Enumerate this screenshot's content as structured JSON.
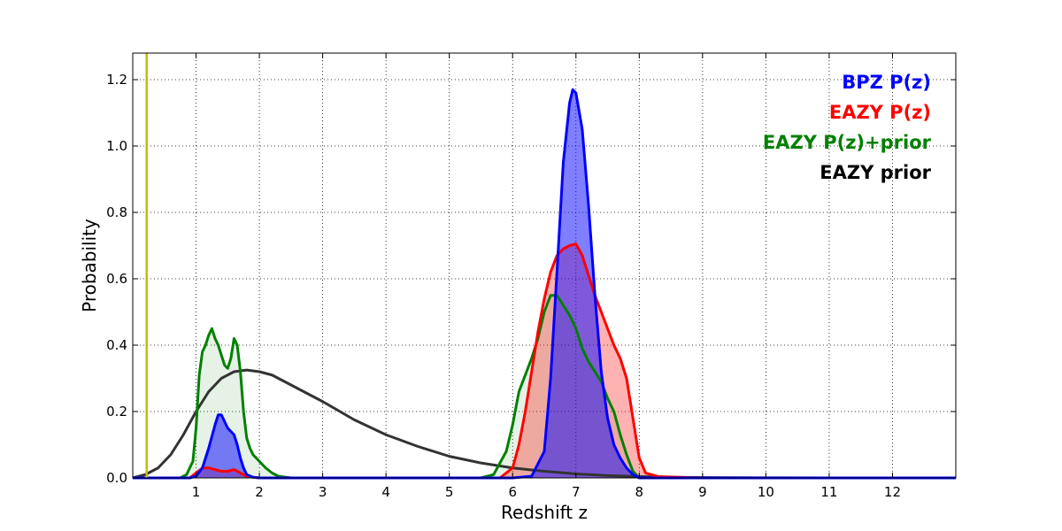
{
  "chart_data": {
    "type": "area",
    "xlabel": "Redshift z",
    "ylabel": "Probability",
    "xlim": [
      0,
      13
    ],
    "ylim": [
      0,
      1.28
    ],
    "xticks": [
      1,
      2,
      3,
      4,
      5,
      6,
      7,
      8,
      9,
      10,
      11,
      12
    ],
    "yticks": [
      0.0,
      0.2,
      0.4,
      0.6,
      0.8,
      1.0,
      1.2
    ],
    "grid": true,
    "legend_position": "top-right",
    "vertical_line": {
      "x": 0.22,
      "color": "#bfbf00"
    },
    "series": [
      {
        "name": "BPZ P(z)",
        "key": "bpz",
        "color": "#0000ff",
        "fill": "#0000ff",
        "fill_opacity": 0.5,
        "x": [
          0.0,
          0.9,
          1.0,
          1.1,
          1.2,
          1.3,
          1.35,
          1.4,
          1.45,
          1.5,
          1.55,
          1.6,
          1.65,
          1.7,
          1.75,
          1.8,
          1.9,
          2.0,
          6.0,
          6.3,
          6.5,
          6.6,
          6.7,
          6.8,
          6.9,
          6.95,
          7.0,
          7.1,
          7.2,
          7.3,
          7.4,
          7.5,
          7.6,
          7.7,
          7.8,
          7.9,
          8.0,
          13.0
        ],
        "y": [
          0.0,
          0.0,
          0.005,
          0.03,
          0.09,
          0.16,
          0.19,
          0.19,
          0.17,
          0.15,
          0.14,
          0.13,
          0.1,
          0.06,
          0.03,
          0.01,
          0.002,
          0.0,
          0.0,
          0.005,
          0.08,
          0.3,
          0.62,
          0.95,
          1.13,
          1.17,
          1.16,
          1.05,
          0.82,
          0.55,
          0.32,
          0.18,
          0.1,
          0.06,
          0.03,
          0.01,
          0.0,
          0.0
        ]
      },
      {
        "name": "EAZY P(z)",
        "key": "eazy",
        "color": "#ff0000",
        "fill": "#ff0000",
        "fill_opacity": 0.3,
        "x": [
          0.0,
          0.9,
          1.0,
          1.1,
          1.2,
          1.3,
          1.4,
          1.5,
          1.6,
          1.7,
          1.8,
          1.9,
          2.0,
          5.8,
          6.0,
          6.1,
          6.2,
          6.3,
          6.4,
          6.5,
          6.6,
          6.7,
          6.8,
          6.9,
          7.0,
          7.1,
          7.2,
          7.3,
          7.4,
          7.5,
          7.6,
          7.7,
          7.8,
          7.9,
          8.0,
          8.1,
          8.3,
          8.6,
          9.0,
          13.0
        ],
        "y": [
          0.0,
          0.0,
          0.015,
          0.03,
          0.03,
          0.025,
          0.02,
          0.02,
          0.025,
          0.015,
          0.005,
          0.002,
          0.0,
          0.0,
          0.03,
          0.1,
          0.2,
          0.32,
          0.44,
          0.54,
          0.62,
          0.67,
          0.69,
          0.7,
          0.705,
          0.67,
          0.61,
          0.55,
          0.5,
          0.45,
          0.4,
          0.36,
          0.3,
          0.18,
          0.06,
          0.015,
          0.004,
          0.002,
          0.0,
          0.0
        ]
      },
      {
        "name": "EAZY P(z)+prior",
        "key": "prior_post",
        "color": "#008000",
        "fill": "#008000",
        "fill_opacity": 0.1,
        "x": [
          0.0,
          0.75,
          0.85,
          0.95,
          1.0,
          1.05,
          1.1,
          1.15,
          1.2,
          1.25,
          1.3,
          1.35,
          1.4,
          1.45,
          1.5,
          1.55,
          1.6,
          1.65,
          1.7,
          1.75,
          1.8,
          1.85,
          1.9,
          2.0,
          2.1,
          2.2,
          2.3,
          2.5,
          5.5,
          5.7,
          5.9,
          6.0,
          6.1,
          6.2,
          6.3,
          6.4,
          6.5,
          6.6,
          6.7,
          6.8,
          6.9,
          7.0,
          7.1,
          7.2,
          7.3,
          7.4,
          7.5,
          7.6,
          7.7,
          7.8,
          7.9,
          8.0,
          13.0
        ],
        "y": [
          0.0,
          0.0,
          0.01,
          0.05,
          0.15,
          0.31,
          0.38,
          0.4,
          0.43,
          0.45,
          0.42,
          0.4,
          0.37,
          0.34,
          0.33,
          0.36,
          0.42,
          0.4,
          0.32,
          0.2,
          0.12,
          0.09,
          0.07,
          0.05,
          0.03,
          0.015,
          0.005,
          0.0,
          0.0,
          0.01,
          0.08,
          0.16,
          0.26,
          0.31,
          0.36,
          0.42,
          0.5,
          0.55,
          0.55,
          0.52,
          0.49,
          0.45,
          0.39,
          0.35,
          0.32,
          0.29,
          0.24,
          0.2,
          0.13,
          0.07,
          0.02,
          0.0,
          0.0
        ]
      },
      {
        "name": "EAZY prior",
        "key": "prior",
        "color": "#333333",
        "fill": "none",
        "fill_opacity": 0,
        "x": [
          0.0,
          0.2,
          0.4,
          0.6,
          0.8,
          1.0,
          1.2,
          1.4,
          1.6,
          1.8,
          2.0,
          2.2,
          2.5,
          3.0,
          3.5,
          4.0,
          4.5,
          5.0,
          5.5,
          6.0,
          6.5,
          7.0,
          7.5,
          8.0,
          8.5,
          9.0,
          10.0,
          11.0,
          12.0,
          13.0
        ],
        "y": [
          0.0,
          0.01,
          0.03,
          0.07,
          0.13,
          0.2,
          0.26,
          0.3,
          0.32,
          0.325,
          0.32,
          0.31,
          0.28,
          0.23,
          0.175,
          0.13,
          0.095,
          0.065,
          0.045,
          0.03,
          0.02,
          0.012,
          0.007,
          0.004,
          0.002,
          0.001,
          0.0004,
          0.0001,
          0.0,
          0.0
        ]
      }
    ]
  }
}
